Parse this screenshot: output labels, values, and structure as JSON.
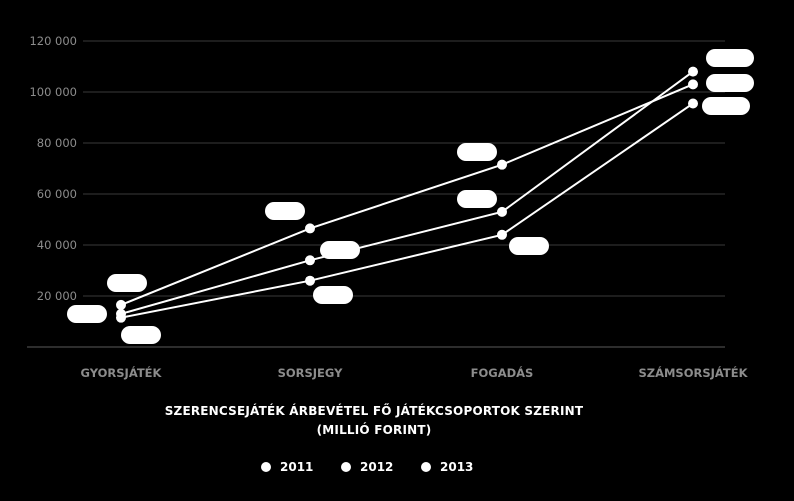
{
  "chart_data": {
    "type": "line",
    "categories": [
      "GYORSJÁTÉK",
      "SORSJEGY",
      "FOGADÁS",
      "SZÁMSORSJÁTÉK"
    ],
    "series": [
      {
        "name": "2011",
        "values": [
          16500,
          46500,
          71500,
          103000
        ]
      },
      {
        "name": "2012",
        "values": [
          13000,
          34000,
          53000,
          108000
        ]
      },
      {
        "name": "2013",
        "values": [
          11500,
          26000,
          44000,
          95500
        ]
      }
    ],
    "y_ticks": [
      "20 000",
      "40 000",
      "60 000",
      "80 000",
      "100 000",
      "120 000"
    ],
    "ylim": [
      0,
      120000
    ],
    "title": "SZERENCSEJÁTÉK ÁRBEVÉTEL FŐ JÁTÉKCSOPORTOK SZERINT",
    "subtitle": "(MILLIÓ FORINT)",
    "grid": true,
    "legend_position": "bottom",
    "colors": {
      "background": "#000000",
      "line": "#ffffff",
      "grid": "#3a3a3a",
      "tick": "#8c8c8c"
    }
  }
}
